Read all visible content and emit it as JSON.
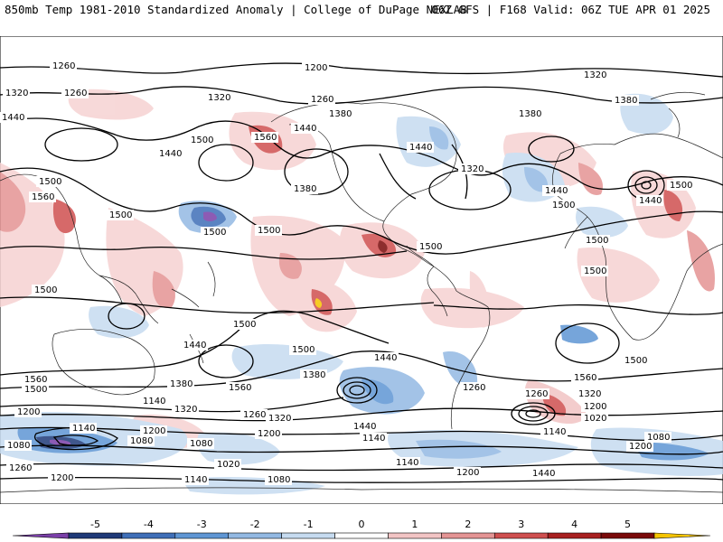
{
  "header": {
    "left": "850mb Temp 1981-2010 Standardized Anomaly | College of DuPage NEXLAB",
    "right": "06Z GFS | F168 Valid: 06Z TUE APR 01 2025"
  },
  "map": {
    "contour_labels": [
      {
        "id": "l1",
        "text": "1260"
      },
      {
        "id": "l2",
        "text": "1200"
      },
      {
        "id": "l3",
        "text": "1320"
      },
      {
        "id": "l4",
        "text": "1320"
      },
      {
        "id": "l5",
        "text": "1260"
      },
      {
        "id": "l6",
        "text": "1440"
      },
      {
        "id": "l7",
        "text": "1320"
      },
      {
        "id": "l8",
        "text": "1380"
      },
      {
        "id": "l9",
        "text": "1260"
      },
      {
        "id": "l10",
        "text": "1380"
      },
      {
        "id": "l11",
        "text": "1380"
      },
      {
        "id": "l12",
        "text": "1560"
      },
      {
        "id": "l13",
        "text": "1440"
      },
      {
        "id": "l14",
        "text": "1500"
      },
      {
        "id": "l15",
        "text": "1440"
      },
      {
        "id": "l16",
        "text": "1440"
      },
      {
        "id": "l17",
        "text": "1320"
      },
      {
        "id": "l18",
        "text": "1380"
      },
      {
        "id": "l19",
        "text": "1500"
      },
      {
        "id": "l20",
        "text": "1500"
      },
      {
        "id": "l21",
        "text": "1440"
      },
      {
        "id": "l22",
        "text": "1560"
      },
      {
        "id": "l23",
        "text": "1500"
      },
      {
        "id": "l24",
        "text": "1500"
      },
      {
        "id": "l25",
        "text": "1500"
      },
      {
        "id": "l26",
        "text": "1500"
      },
      {
        "id": "l27",
        "text": "1500"
      },
      {
        "id": "l28",
        "text": "1440"
      },
      {
        "id": "l29",
        "text": "1500"
      },
      {
        "id": "l30",
        "text": "1500"
      },
      {
        "id": "l31",
        "text": "1500"
      },
      {
        "id": "l32",
        "text": "1440"
      },
      {
        "id": "l33",
        "text": "1380"
      },
      {
        "id": "l34",
        "text": "1560"
      },
      {
        "id": "l35",
        "text": "1500"
      },
      {
        "id": "l36",
        "text": "1500"
      },
      {
        "id": "l37",
        "text": "1440"
      },
      {
        "id": "l38",
        "text": "1380"
      },
      {
        "id": "l39",
        "text": "1260"
      },
      {
        "id": "l40",
        "text": "1560"
      },
      {
        "id": "l41",
        "text": "1500"
      },
      {
        "id": "l42",
        "text": "1560"
      },
      {
        "id": "l43",
        "text": "1500"
      },
      {
        "id": "l44",
        "text": "1260"
      },
      {
        "id": "l45",
        "text": "1200"
      },
      {
        "id": "l46",
        "text": "1140"
      },
      {
        "id": "l47",
        "text": "1320"
      },
      {
        "id": "l48",
        "text": "1260"
      },
      {
        "id": "l49",
        "text": "1320"
      },
      {
        "id": "l50",
        "text": "1440"
      },
      {
        "id": "l51",
        "text": "1320"
      },
      {
        "id": "l52",
        "text": "1200"
      },
      {
        "id": "l53",
        "text": "1020"
      },
      {
        "id": "l54",
        "text": "1140"
      },
      {
        "id": "l55",
        "text": "1200"
      },
      {
        "id": "l56",
        "text": "1080"
      },
      {
        "id": "l57",
        "text": "1080"
      },
      {
        "id": "l58",
        "text": "1080"
      },
      {
        "id": "l59",
        "text": "1200"
      },
      {
        "id": "l60",
        "text": "1140"
      },
      {
        "id": "l61",
        "text": "1140"
      },
      {
        "id": "l62",
        "text": "1080"
      },
      {
        "id": "l63",
        "text": "1200"
      },
      {
        "id": "l64",
        "text": "1260"
      },
      {
        "id": "l65",
        "text": "1020"
      },
      {
        "id": "l66",
        "text": "1200"
      },
      {
        "id": "l67",
        "text": "1140"
      },
      {
        "id": "l68",
        "text": "1080"
      },
      {
        "id": "l69",
        "text": "1140"
      },
      {
        "id": "l70",
        "text": "1200"
      },
      {
        "id": "l71",
        "text": "1440"
      }
    ]
  },
  "colorbar": {
    "ticks": [
      "-5",
      "-4",
      "-3",
      "-2",
      "-1",
      "0",
      "1",
      "2",
      "3",
      "4",
      "5"
    ],
    "colors": [
      "#7a3fa8",
      "#1f3a78",
      "#3f6fb8",
      "#5f96d4",
      "#93b9e3",
      "#c6dbf0",
      "#ffffff",
      "#f2c4c4",
      "#e49494",
      "#cf4f4f",
      "#a82020",
      "#7a0a0a",
      "#f5c400"
    ]
  }
}
